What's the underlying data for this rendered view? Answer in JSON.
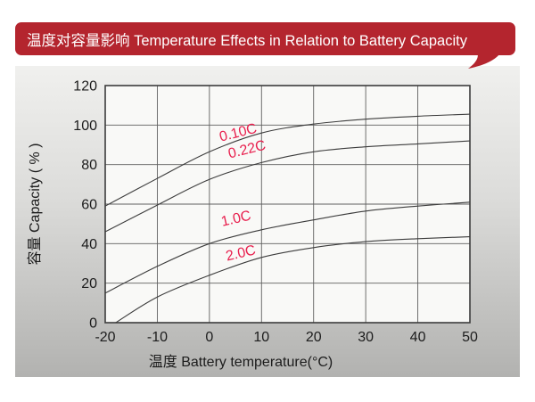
{
  "banner": {
    "text": "温度对容量影响 Temperature Effects in Relation to Battery Capacity",
    "bg": "#b4252e",
    "fg": "#ffffff"
  },
  "chart_data": {
    "type": "line",
    "title": "温度对容量影响 Temperature Effects in Relation to Battery Capacity",
    "xlabel": "温度  Battery temperature(°C)",
    "ylabel": "容量 Capacity ( % )",
    "xlim": [
      -20,
      50
    ],
    "ylim": [
      0,
      120
    ],
    "xticks": [
      -20,
      -10,
      0,
      10,
      20,
      30,
      40,
      50
    ],
    "yticks": [
      0,
      20,
      40,
      60,
      80,
      100,
      120
    ],
    "grid": true,
    "legend_position": "inline-curve-labels",
    "series": [
      {
        "name": "0.10C",
        "points": [
          [
            -20,
            59
          ],
          [
            -10,
            73
          ],
          [
            0,
            86.5
          ],
          [
            10,
            96
          ],
          [
            20,
            100.5
          ],
          [
            30,
            103
          ],
          [
            40,
            104.5
          ],
          [
            50,
            105.5
          ]
        ],
        "label": {
          "x": 5.7,
          "y": 94,
          "rotate": -14
        }
      },
      {
        "name": "0.22C",
        "points": [
          [
            -20,
            46
          ],
          [
            -10,
            59.5
          ],
          [
            0,
            72.5
          ],
          [
            10,
            81
          ],
          [
            20,
            86.5
          ],
          [
            30,
            89
          ],
          [
            40,
            90.5
          ],
          [
            50,
            92
          ]
        ],
        "label": {
          "x": 7.4,
          "y": 85.5,
          "rotate": -14
        }
      },
      {
        "name": "1.0C",
        "points": [
          [
            -20,
            15
          ],
          [
            -10,
            28.5
          ],
          [
            0,
            40
          ],
          [
            10,
            47
          ],
          [
            20,
            52
          ],
          [
            30,
            56.5
          ],
          [
            40,
            59
          ],
          [
            50,
            61
          ]
        ],
        "label": {
          "x": 5.3,
          "y": 50.5,
          "rotate": -13
        }
      },
      {
        "name": "2.0C",
        "points": [
          [
            -18,
            0
          ],
          [
            -10,
            13
          ],
          [
            0,
            24
          ],
          [
            10,
            33
          ],
          [
            20,
            38
          ],
          [
            30,
            41
          ],
          [
            40,
            42.5
          ],
          [
            50,
            43.5
          ]
        ],
        "label": {
          "x": 6.2,
          "y": 33,
          "rotate": -13
        }
      }
    ],
    "colors": {
      "plot_bg": "#f9f9f7",
      "grid": "#5f5f5f",
      "border": "#3c3c3c",
      "line": "#3c3c3c",
      "curve_label": "#e8204e",
      "text": "#1c1c1c"
    }
  }
}
